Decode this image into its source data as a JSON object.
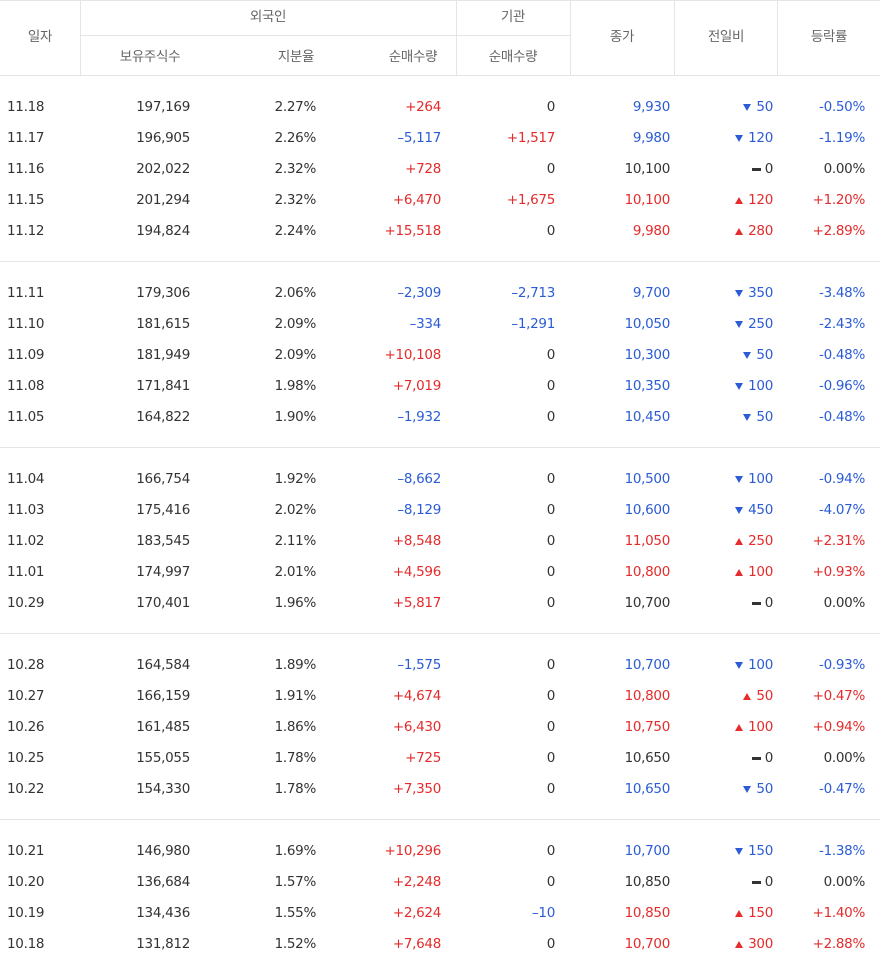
{
  "header": {
    "date": "일자",
    "foreign": "외국인",
    "holdings": "보유주식수",
    "ratio": "지분율",
    "foreign_net": "순매수량",
    "institution": "기관",
    "institution_net": "순매수량",
    "close": "종가",
    "change": "전일비",
    "rate": "등락률"
  },
  "groups": [
    [
      [
        "11.18",
        "197,169",
        "2.27%",
        "+264",
        "0",
        "9,930",
        "50",
        "-0.50%"
      ],
      [
        "11.17",
        "196,905",
        "2.26%",
        "–5,117",
        "+1,517",
        "9,980",
        "120",
        "-1.19%"
      ],
      [
        "11.16",
        "202,022",
        "2.32%",
        "+728",
        "0",
        "10,100",
        "0",
        "0.00%"
      ],
      [
        "11.15",
        "201,294",
        "2.32%",
        "+6,470",
        "+1,675",
        "10,100",
        "120",
        "+1.20%"
      ],
      [
        "11.12",
        "194,824",
        "2.24%",
        "+15,518",
        "0",
        "9,980",
        "280",
        "+2.89%"
      ]
    ],
    [
      [
        "11.11",
        "179,306",
        "2.06%",
        "–2,309",
        "–2,713",
        "9,700",
        "350",
        "-3.48%"
      ],
      [
        "11.10",
        "181,615",
        "2.09%",
        "–334",
        "–1,291",
        "10,050",
        "250",
        "-2.43%"
      ],
      [
        "11.09",
        "181,949",
        "2.09%",
        "+10,108",
        "0",
        "10,300",
        "50",
        "-0.48%"
      ],
      [
        "11.08",
        "171,841",
        "1.98%",
        "+7,019",
        "0",
        "10,350",
        "100",
        "-0.96%"
      ],
      [
        "11.05",
        "164,822",
        "1.90%",
        "–1,932",
        "0",
        "10,450",
        "50",
        "-0.48%"
      ]
    ],
    [
      [
        "11.04",
        "166,754",
        "1.92%",
        "–8,662",
        "0",
        "10,500",
        "100",
        "-0.94%"
      ],
      [
        "11.03",
        "175,416",
        "2.02%",
        "–8,129",
        "0",
        "10,600",
        "450",
        "-4.07%"
      ],
      [
        "11.02",
        "183,545",
        "2.11%",
        "+8,548",
        "0",
        "11,050",
        "250",
        "+2.31%"
      ],
      [
        "11.01",
        "174,997",
        "2.01%",
        "+4,596",
        "0",
        "10,800",
        "100",
        "+0.93%"
      ],
      [
        "10.29",
        "170,401",
        "1.96%",
        "+5,817",
        "0",
        "10,700",
        "0",
        "0.00%"
      ]
    ],
    [
      [
        "10.28",
        "164,584",
        "1.89%",
        "–1,575",
        "0",
        "10,700",
        "100",
        "-0.93%"
      ],
      [
        "10.27",
        "166,159",
        "1.91%",
        "+4,674",
        "0",
        "10,800",
        "50",
        "+0.47%"
      ],
      [
        "10.26",
        "161,485",
        "1.86%",
        "+6,430",
        "0",
        "10,750",
        "100",
        "+0.94%"
      ],
      [
        "10.25",
        "155,055",
        "1.78%",
        "+725",
        "0",
        "10,650",
        "0",
        "0.00%"
      ],
      [
        "10.22",
        "154,330",
        "1.78%",
        "+7,350",
        "0",
        "10,650",
        "50",
        "-0.47%"
      ]
    ],
    [
      [
        "10.21",
        "146,980",
        "1.69%",
        "+10,296",
        "0",
        "10,700",
        "150",
        "-1.38%"
      ],
      [
        "10.20",
        "136,684",
        "1.57%",
        "+2,248",
        "0",
        "10,850",
        "0",
        "0.00%"
      ],
      [
        "10.19",
        "134,436",
        "1.55%",
        "+2,624",
        "–10",
        "10,850",
        "150",
        "+1.40%"
      ],
      [
        "10.18",
        "131,812",
        "1.52%",
        "+7,648",
        "0",
        "10,700",
        "300",
        "+2.88%"
      ]
    ]
  ]
}
